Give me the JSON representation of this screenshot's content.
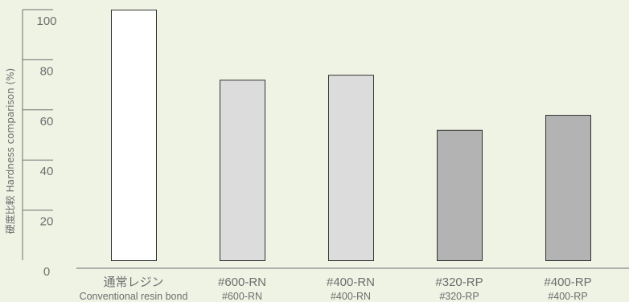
{
  "chart_data": {
    "type": "bar",
    "ylabel": "硬度比較 Hardness comparison (%)",
    "ylim": [
      0,
      100
    ],
    "yticks": [
      0,
      20,
      40,
      60,
      80,
      100
    ],
    "categories": [
      {
        "label": "通常レジン",
        "sublabel": "Conventional resin bond"
      },
      {
        "label": "#600-RN",
        "sublabel": "#600-RN"
      },
      {
        "label": "#400-RN",
        "sublabel": "#400-RN"
      },
      {
        "label": "#320-RP",
        "sublabel": "#320-RP"
      },
      {
        "label": "#400-RP",
        "sublabel": "#400-RP"
      }
    ],
    "values": [
      100,
      72,
      74,
      52,
      58
    ],
    "bar_colors": [
      "#ffffff",
      "#dcdcdc",
      "#dcdcdc",
      "#b3b3b3",
      "#b3b3b3"
    ],
    "grid": false
  },
  "colors": {
    "background": "#eef3e4",
    "axis": "#6e6e6e",
    "bar_stroke": "#333333"
  }
}
